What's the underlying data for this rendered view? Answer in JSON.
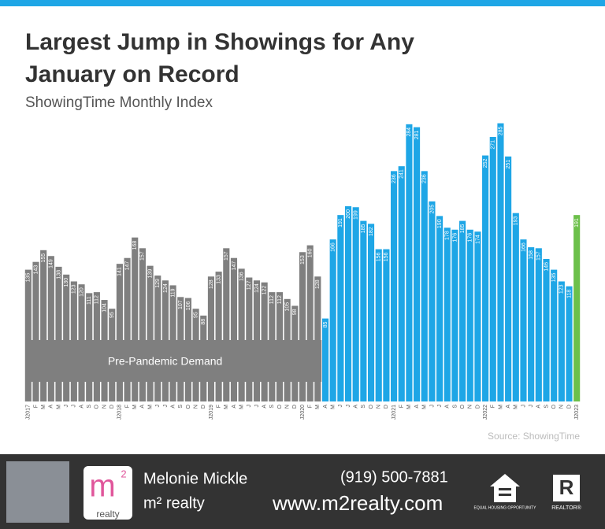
{
  "chart_data": {
    "type": "bar",
    "title": [
      "Largest Jump in Showings for Any",
      "January on Record"
    ],
    "subtitle": "ShowingTime Monthly Index",
    "annotation": "Pre-Pandemic Demand",
    "source": "Source: ShowingTime",
    "categories": [
      "J2017",
      "F",
      "M",
      "A",
      "M",
      "J",
      "J",
      "A",
      "S",
      "O",
      "N",
      "D",
      "J2018",
      "F",
      "M",
      "A",
      "M",
      "J",
      "J",
      "A",
      "S",
      "O",
      "N",
      "D",
      "J2019",
      "F",
      "M",
      "A",
      "M",
      "J",
      "J",
      "A",
      "S",
      "O",
      "N",
      "D",
      "J2020",
      "F",
      "M",
      "A",
      "M",
      "J",
      "J",
      "A",
      "S",
      "O",
      "N",
      "D",
      "J2021",
      "F",
      "M",
      "A",
      "M",
      "J",
      "J",
      "A",
      "S",
      "O",
      "N",
      "D",
      "J2022",
      "F",
      "M",
      "A",
      "M",
      "J",
      "J",
      "A",
      "S",
      "O",
      "N",
      "D",
      "J2023"
    ],
    "values": [
      135,
      143,
      155,
      149,
      138,
      130,
      123,
      120,
      111,
      112,
      104,
      95,
      141,
      147,
      168,
      157,
      139,
      129,
      124,
      119,
      107,
      106,
      95,
      88,
      128,
      133,
      157,
      147,
      136,
      127,
      124,
      122,
      112,
      112,
      105,
      98,
      153,
      160,
      128,
      85,
      166,
      191,
      200,
      199,
      185,
      182,
      156,
      156,
      236,
      241,
      284,
      281,
      236,
      205,
      190,
      178,
      176,
      185,
      176,
      174,
      252,
      271,
      285,
      251,
      193,
      166,
      158,
      157,
      146,
      135,
      123,
      118,
      191
    ],
    "colors": [
      "#7f7f7f",
      "#7f7f7f",
      "#7f7f7f",
      "#7f7f7f",
      "#7f7f7f",
      "#7f7f7f",
      "#7f7f7f",
      "#7f7f7f",
      "#7f7f7f",
      "#7f7f7f",
      "#7f7f7f",
      "#7f7f7f",
      "#7f7f7f",
      "#7f7f7f",
      "#7f7f7f",
      "#7f7f7f",
      "#7f7f7f",
      "#7f7f7f",
      "#7f7f7f",
      "#7f7f7f",
      "#7f7f7f",
      "#7f7f7f",
      "#7f7f7f",
      "#7f7f7f",
      "#7f7f7f",
      "#7f7f7f",
      "#7f7f7f",
      "#7f7f7f",
      "#7f7f7f",
      "#7f7f7f",
      "#7f7f7f",
      "#7f7f7f",
      "#7f7f7f",
      "#7f7f7f",
      "#7f7f7f",
      "#7f7f7f",
      "#7f7f7f",
      "#7f7f7f",
      "#7f7f7f",
      "#1ea6e6",
      "#1ea6e6",
      "#1ea6e6",
      "#1ea6e6",
      "#1ea6e6",
      "#1ea6e6",
      "#1ea6e6",
      "#1ea6e6",
      "#1ea6e6",
      "#1ea6e6",
      "#1ea6e6",
      "#1ea6e6",
      "#1ea6e6",
      "#1ea6e6",
      "#1ea6e6",
      "#1ea6e6",
      "#1ea6e6",
      "#1ea6e6",
      "#1ea6e6",
      "#1ea6e6",
      "#1ea6e6",
      "#1ea6e6",
      "#1ea6e6",
      "#1ea6e6",
      "#1ea6e6",
      "#1ea6e6",
      "#1ea6e6",
      "#1ea6e6",
      "#1ea6e6",
      "#1ea6e6",
      "#1ea6e6",
      "#1ea6e6",
      "#1ea6e6",
      "#6cc04a"
    ],
    "ylim": [
      0,
      300
    ]
  },
  "footer": {
    "name": "Melonie Mickle",
    "company": "m² realty",
    "phone": "(919) 500-7881",
    "website": "www.m2realty.com",
    "logo_text": "realty",
    "logo_mark": "m",
    "logo_sup": "2",
    "equal_housing": "EQUAL HOUSING OPPORTUNITY",
    "realtor_mark": "R",
    "realtor": "REALTOR®"
  }
}
